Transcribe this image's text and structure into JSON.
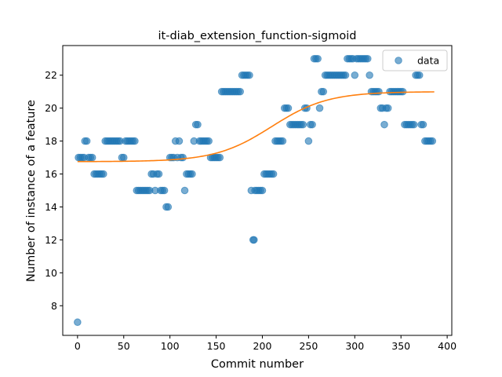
{
  "chart_data": {
    "type": "scatter",
    "title": "it-diab_extension_function-sigmoid",
    "xlabel": "Commit number",
    "ylabel": "Number of instance of a feature",
    "xlim": [
      -16,
      405
    ],
    "ylim": [
      6.2,
      23.8
    ],
    "xticks": [
      0,
      50,
      100,
      150,
      200,
      250,
      300,
      350,
      400
    ],
    "yticks": [
      8,
      10,
      12,
      14,
      16,
      18,
      20,
      22
    ],
    "legend": {
      "entries": [
        "data"
      ],
      "placement": "top-right"
    },
    "colors": {
      "data": "#1f77b4",
      "fit": "#ff7f0e"
    },
    "series": [
      {
        "name": "data",
        "points": [
          [
            0,
            7
          ],
          [
            1,
            17
          ],
          [
            3,
            17
          ],
          [
            5,
            17
          ],
          [
            7,
            17
          ],
          [
            8,
            18
          ],
          [
            10,
            18
          ],
          [
            12,
            17
          ],
          [
            14,
            17
          ],
          [
            16,
            17
          ],
          [
            18,
            16
          ],
          [
            20,
            16
          ],
          [
            22,
            16
          ],
          [
            24,
            16
          ],
          [
            26,
            16
          ],
          [
            28,
            16
          ],
          [
            30,
            18
          ],
          [
            32,
            18
          ],
          [
            34,
            18
          ],
          [
            36,
            18
          ],
          [
            38,
            18
          ],
          [
            40,
            18
          ],
          [
            42,
            18
          ],
          [
            44,
            18
          ],
          [
            46,
            18
          ],
          [
            48,
            17
          ],
          [
            50,
            17
          ],
          [
            52,
            18
          ],
          [
            54,
            18
          ],
          [
            56,
            18
          ],
          [
            58,
            18
          ],
          [
            60,
            18
          ],
          [
            62,
            18
          ],
          [
            64,
            15
          ],
          [
            66,
            15
          ],
          [
            68,
            15
          ],
          [
            70,
            15
          ],
          [
            72,
            15
          ],
          [
            74,
            15
          ],
          [
            76,
            15
          ],
          [
            78,
            15
          ],
          [
            80,
            16
          ],
          [
            82,
            16
          ],
          [
            84,
            15
          ],
          [
            86,
            16
          ],
          [
            88,
            16
          ],
          [
            90,
            15
          ],
          [
            92,
            15
          ],
          [
            94,
            15
          ],
          [
            96,
            14
          ],
          [
            98,
            14
          ],
          [
            100,
            17
          ],
          [
            102,
            17
          ],
          [
            104,
            17
          ],
          [
            106,
            18
          ],
          [
            108,
            17
          ],
          [
            110,
            18
          ],
          [
            112,
            17
          ],
          [
            114,
            17
          ],
          [
            116,
            15
          ],
          [
            118,
            16
          ],
          [
            120,
            16
          ],
          [
            122,
            16
          ],
          [
            124,
            16
          ],
          [
            126,
            18
          ],
          [
            128,
            19
          ],
          [
            130,
            19
          ],
          [
            132,
            18
          ],
          [
            134,
            18
          ],
          [
            136,
            18
          ],
          [
            138,
            18
          ],
          [
            140,
            18
          ],
          [
            142,
            18
          ],
          [
            144,
            17
          ],
          [
            146,
            17
          ],
          [
            148,
            17
          ],
          [
            150,
            17
          ],
          [
            152,
            17
          ],
          [
            154,
            17
          ],
          [
            156,
            21
          ],
          [
            158,
            21
          ],
          [
            160,
            21
          ],
          [
            162,
            21
          ],
          [
            164,
            21
          ],
          [
            166,
            21
          ],
          [
            168,
            21
          ],
          [
            170,
            21
          ],
          [
            172,
            21
          ],
          [
            174,
            21
          ],
          [
            176,
            21
          ],
          [
            178,
            22
          ],
          [
            180,
            22
          ],
          [
            182,
            22
          ],
          [
            184,
            22
          ],
          [
            186,
            22
          ],
          [
            188,
            15
          ],
          [
            190,
            12
          ],
          [
            191,
            12
          ],
          [
            192,
            15
          ],
          [
            194,
            15
          ],
          [
            196,
            15
          ],
          [
            198,
            15
          ],
          [
            200,
            15
          ],
          [
            202,
            16
          ],
          [
            204,
            16
          ],
          [
            206,
            16
          ],
          [
            208,
            16
          ],
          [
            210,
            16
          ],
          [
            212,
            16
          ],
          [
            214,
            18
          ],
          [
            216,
            18
          ],
          [
            218,
            18
          ],
          [
            220,
            18
          ],
          [
            222,
            18
          ],
          [
            224,
            20
          ],
          [
            226,
            20
          ],
          [
            228,
            20
          ],
          [
            230,
            19
          ],
          [
            232,
            19
          ],
          [
            234,
            19
          ],
          [
            236,
            19
          ],
          [
            238,
            19
          ],
          [
            240,
            19
          ],
          [
            242,
            19
          ],
          [
            244,
            19
          ],
          [
            246,
            20
          ],
          [
            248,
            20
          ],
          [
            250,
            18
          ],
          [
            252,
            19
          ],
          [
            254,
            19
          ],
          [
            256,
            23
          ],
          [
            258,
            23
          ],
          [
            260,
            23
          ],
          [
            262,
            20
          ],
          [
            264,
            21
          ],
          [
            266,
            21
          ],
          [
            268,
            22
          ],
          [
            270,
            22
          ],
          [
            272,
            22
          ],
          [
            274,
            22
          ],
          [
            276,
            22
          ],
          [
            278,
            22
          ],
          [
            280,
            22
          ],
          [
            282,
            22
          ],
          [
            284,
            22
          ],
          [
            286,
            22
          ],
          [
            288,
            22
          ],
          [
            290,
            22
          ],
          [
            292,
            23
          ],
          [
            294,
            23
          ],
          [
            296,
            23
          ],
          [
            298,
            23
          ],
          [
            300,
            22
          ],
          [
            302,
            23
          ],
          [
            304,
            23
          ],
          [
            306,
            23
          ],
          [
            308,
            23
          ],
          [
            310,
            23
          ],
          [
            312,
            23
          ],
          [
            314,
            23
          ],
          [
            316,
            22
          ],
          [
            318,
            21
          ],
          [
            320,
            21
          ],
          [
            322,
            21
          ],
          [
            324,
            21
          ],
          [
            326,
            21
          ],
          [
            328,
            20
          ],
          [
            330,
            20
          ],
          [
            332,
            19
          ],
          [
            334,
            20
          ],
          [
            336,
            20
          ],
          [
            338,
            21
          ],
          [
            340,
            21
          ],
          [
            342,
            21
          ],
          [
            344,
            21
          ],
          [
            346,
            21
          ],
          [
            348,
            21
          ],
          [
            350,
            21
          ],
          [
            352,
            21
          ],
          [
            354,
            19
          ],
          [
            356,
            19
          ],
          [
            358,
            19
          ],
          [
            360,
            19
          ],
          [
            362,
            19
          ],
          [
            364,
            19
          ],
          [
            366,
            22
          ],
          [
            368,
            22
          ],
          [
            370,
            22
          ],
          [
            372,
            19
          ],
          [
            374,
            19
          ],
          [
            376,
            18
          ],
          [
            378,
            18
          ],
          [
            380,
            18
          ],
          [
            382,
            18
          ],
          [
            384,
            18
          ]
        ]
      },
      {
        "name": "",
        "kind": "sigmoid-fit",
        "x_range": [
          0,
          386
        ],
        "params": {
          "min": 16.75,
          "max": 21.0,
          "midpoint": 210,
          "rate": 0.033
        }
      }
    ]
  }
}
